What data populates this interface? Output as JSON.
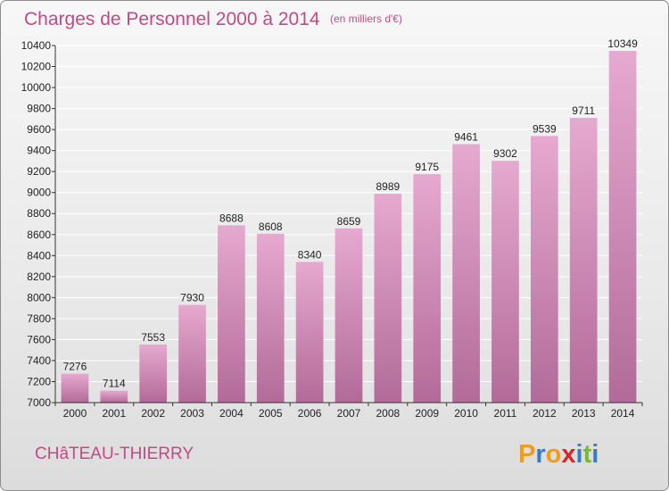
{
  "title": "Charges de Personnel 2000 à 2014",
  "subtitle": "(en milliers d'€)",
  "city": "CHâTEAU-THIERRY",
  "logo": {
    "letters": [
      "P",
      "r",
      "o",
      "x",
      "i",
      "t",
      "i"
    ],
    "colors": [
      "#f29b1d",
      "#3a7cc4",
      "#f29b1d",
      "#d6262c",
      "#3a7cc4",
      "#7ab934",
      "#3a7cc4"
    ]
  },
  "colors": {
    "bar_top": "#e6a9cf",
    "bar_bottom": "#b26b98",
    "accent": "#c04a84"
  },
  "chart_data": {
    "type": "bar",
    "title": "Charges de Personnel 2000 à 2014",
    "subtitle": "(en milliers d'€)",
    "categories": [
      "2000",
      "2001",
      "2002",
      "2003",
      "2004",
      "2005",
      "2006",
      "2007",
      "2008",
      "2009",
      "2010",
      "2011",
      "2012",
      "2013",
      "2014"
    ],
    "values": [
      7276,
      7114,
      7553,
      7930,
      8688,
      8608,
      8340,
      8659,
      8989,
      9175,
      9461,
      9302,
      9539,
      9711,
      10349
    ],
    "ylim": [
      7000,
      10400
    ],
    "yticks": [
      7000,
      7200,
      7400,
      7600,
      7800,
      8000,
      8200,
      8400,
      8600,
      8800,
      9000,
      9200,
      9400,
      9600,
      9800,
      10000,
      10200,
      10400
    ],
    "grid": true,
    "legend": "none"
  }
}
